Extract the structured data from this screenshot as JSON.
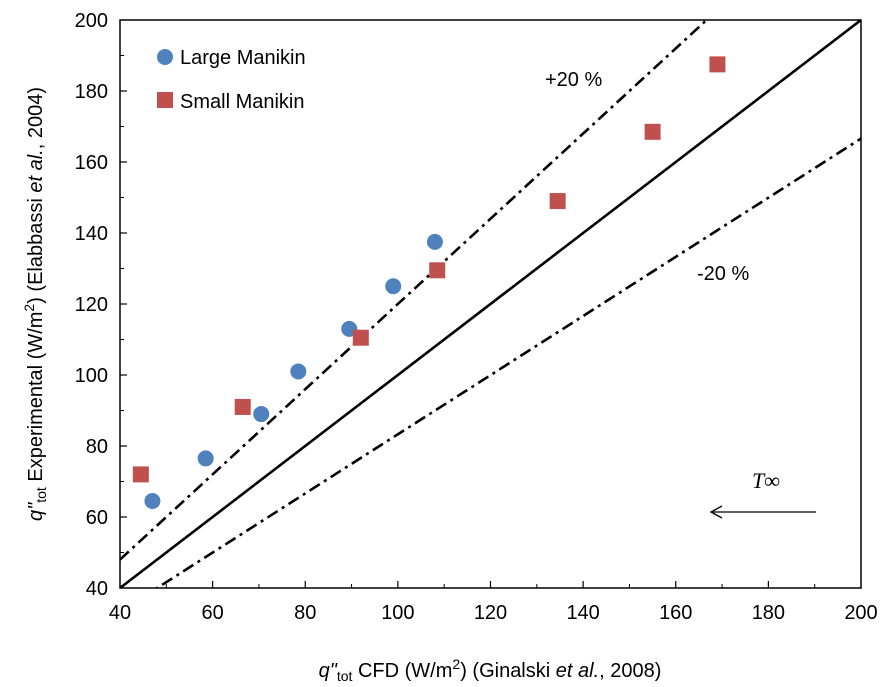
{
  "chart_data": {
    "type": "scatter",
    "xlabel": {
      "parts": [
        {
          "text": "q\"",
          "style": "italic"
        },
        {
          "text": "tot",
          "style": "sub"
        },
        {
          "text": " CFD (W/m",
          "style": "normal"
        },
        {
          "text": "2",
          "style": "sup"
        },
        {
          "text": ") (Ginalski ",
          "style": "normal"
        },
        {
          "text": "et al.",
          "style": "italic"
        },
        {
          "text": ", 2008)",
          "style": "normal"
        }
      ]
    },
    "ylabel": {
      "parts": [
        {
          "text": "q\"",
          "style": "italic"
        },
        {
          "text": "tot",
          "style": "sub"
        },
        {
          "text": " Experimental (W/m",
          "style": "normal"
        },
        {
          "text": "2",
          "style": "sup"
        },
        {
          "text": ") (Elabbassi ",
          "style": "normal"
        },
        {
          "text": "et al.",
          "style": "italic"
        },
        {
          "text": ", 2004)",
          "style": "normal"
        }
      ]
    },
    "xlim": [
      40,
      200
    ],
    "ylim": [
      40,
      200
    ],
    "x_ticks": [
      "40",
      "60",
      "80",
      "100",
      "120",
      "140",
      "160",
      "180",
      "200"
    ],
    "y_ticks": [
      "40",
      "60",
      "80",
      "100",
      "120",
      "140",
      "160",
      "180",
      "200"
    ],
    "grid": false,
    "legend_position": "top-left",
    "series": [
      {
        "name": "Large Manikin",
        "marker": "circle",
        "color": "#4F81BD",
        "points": [
          {
            "x": 47,
            "y": 64.5
          },
          {
            "x": 58.5,
            "y": 76.5
          },
          {
            "x": 70.5,
            "y": 89
          },
          {
            "x": 78.5,
            "y": 101
          },
          {
            "x": 89.5,
            "y": 113
          },
          {
            "x": 99,
            "y": 125
          },
          {
            "x": 108,
            "y": 137.5
          }
        ]
      },
      {
        "name": "Small Manikin",
        "marker": "square",
        "color": "#C0504D",
        "points": [
          {
            "x": 44.5,
            "y": 72
          },
          {
            "x": 66.5,
            "y": 91
          },
          {
            "x": 92,
            "y": 110.5
          },
          {
            "x": 108.5,
            "y": 129.5
          },
          {
            "x": 134.5,
            "y": 149
          },
          {
            "x": 155,
            "y": 168.5
          },
          {
            "x": 169,
            "y": 187.5
          }
        ]
      }
    ],
    "reference_lines": [
      {
        "label": "",
        "slope": 1.0,
        "style": "solid"
      },
      {
        "label": "+20 %",
        "slope": 1.2,
        "style": "dash-dot"
      },
      {
        "label": "-20 %",
        "slope": 0.833,
        "style": "dash-dot"
      }
    ],
    "annotations": [
      {
        "text": "T∞",
        "note": "arrow pointing left"
      }
    ]
  }
}
